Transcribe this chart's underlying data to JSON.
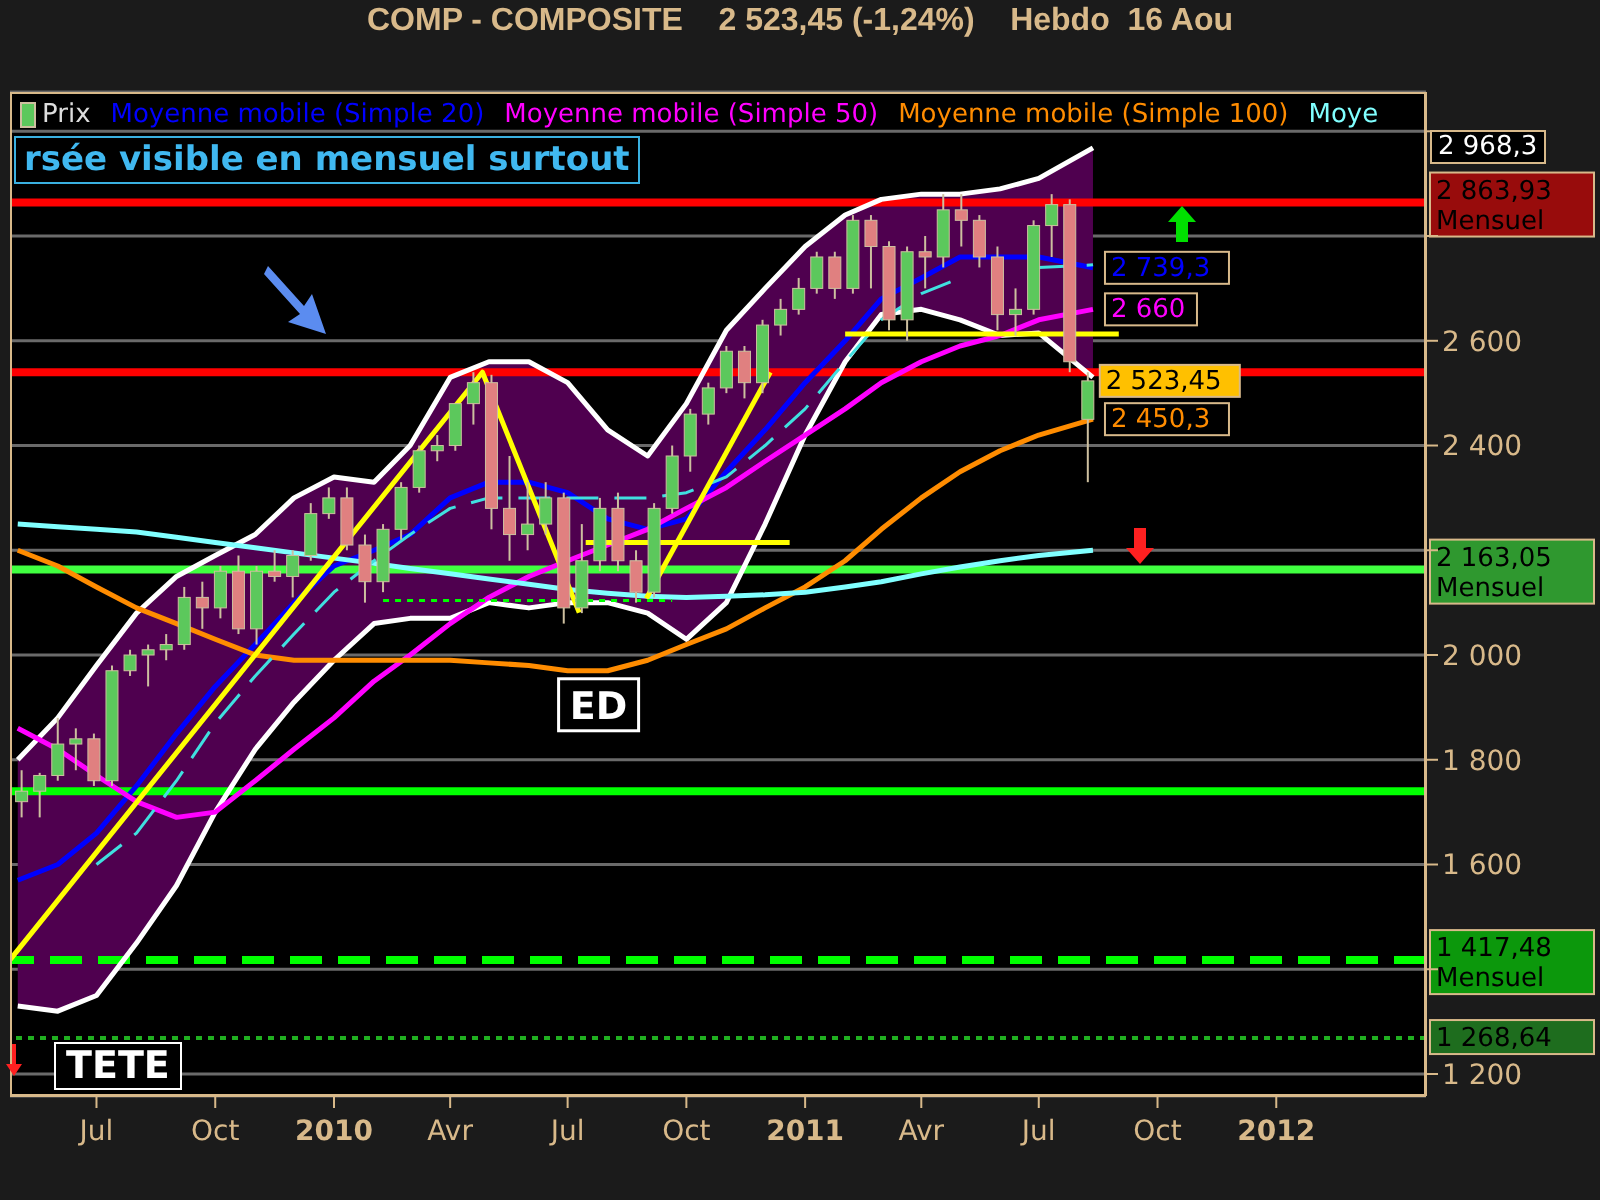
{
  "chart_data": {
    "type": "candlestick",
    "title": "COMP - COMPOSITE    2 523,45 (-1,24%)    Hebdo  16 Aou",
    "x": [
      "2009-05-04",
      "2009-05-18",
      "2009-06-01",
      "2009-06-15",
      "2009-06-29",
      "2009-07-13",
      "2009-07-27",
      "2009-08-10",
      "2009-08-24",
      "2009-09-07",
      "2009-09-21",
      "2009-10-05",
      "2009-10-19",
      "2009-11-02",
      "2009-11-16",
      "2009-11-30",
      "2009-12-14",
      "2009-12-28",
      "2010-01-11",
      "2010-01-25",
      "2010-02-08",
      "2010-02-22",
      "2010-03-08",
      "2010-03-22",
      "2010-04-05",
      "2010-04-19",
      "2010-05-03",
      "2010-05-17",
      "2010-05-31",
      "2010-06-14",
      "2010-06-28",
      "2010-07-12",
      "2010-07-26",
      "2010-08-09",
      "2010-08-23",
      "2010-09-06",
      "2010-09-20",
      "2010-10-04",
      "2010-10-18",
      "2010-11-01",
      "2010-11-15",
      "2010-11-29",
      "2010-12-13",
      "2010-12-27",
      "2011-01-10",
      "2011-01-24",
      "2011-02-07",
      "2011-02-21",
      "2011-03-07",
      "2011-03-21",
      "2011-04-04",
      "2011-04-18",
      "2011-05-02",
      "2011-05-16",
      "2011-05-30",
      "2011-06-13",
      "2011-06-27",
      "2011-07-11",
      "2011-07-25",
      "2011-08-08"
    ],
    "series": [
      {
        "name": "Prix",
        "ohlc": [
          [
            1720,
            1780,
            1690,
            1740
          ],
          [
            1740,
            1775,
            1690,
            1770
          ],
          [
            1770,
            1880,
            1760,
            1830
          ],
          [
            1830,
            1860,
            1780,
            1840
          ],
          [
            1840,
            1850,
            1750,
            1760
          ],
          [
            1760,
            1980,
            1750,
            1970
          ],
          [
            1970,
            2010,
            1960,
            2000
          ],
          [
            2000,
            2020,
            1940,
            2010
          ],
          [
            2010,
            2040,
            1990,
            2020
          ],
          [
            2020,
            2130,
            2010,
            2110
          ],
          [
            2110,
            2140,
            2050,
            2090
          ],
          [
            2090,
            2170,
            2070,
            2160
          ],
          [
            2160,
            2190,
            2040,
            2050
          ],
          [
            2050,
            2170,
            2020,
            2160
          ],
          [
            2160,
            2200,
            2140,
            2150
          ],
          [
            2150,
            2200,
            2110,
            2190
          ],
          [
            2190,
            2290,
            2180,
            2270
          ],
          [
            2270,
            2320,
            2260,
            2300
          ],
          [
            2300,
            2320,
            2200,
            2210
          ],
          [
            2210,
            2230,
            2100,
            2140
          ],
          [
            2140,
            2250,
            2120,
            2240
          ],
          [
            2240,
            2330,
            2220,
            2320
          ],
          [
            2320,
            2400,
            2310,
            2390
          ],
          [
            2390,
            2420,
            2370,
            2400
          ],
          [
            2400,
            2480,
            2390,
            2480
          ],
          [
            2480,
            2540,
            2440,
            2520
          ],
          [
            2520,
            2535,
            2240,
            2280
          ],
          [
            2280,
            2380,
            2180,
            2230
          ],
          [
            2230,
            2330,
            2200,
            2250
          ],
          [
            2250,
            2330,
            2230,
            2300
          ],
          [
            2300,
            2310,
            2060,
            2090
          ],
          [
            2090,
            2250,
            2080,
            2180
          ],
          [
            2180,
            2300,
            2160,
            2280
          ],
          [
            2280,
            2310,
            2160,
            2180
          ],
          [
            2180,
            2200,
            2100,
            2120
          ],
          [
            2120,
            2290,
            2110,
            2280
          ],
          [
            2280,
            2400,
            2270,
            2380
          ],
          [
            2380,
            2470,
            2350,
            2460
          ],
          [
            2460,
            2520,
            2440,
            2510
          ],
          [
            2510,
            2590,
            2500,
            2580
          ],
          [
            2580,
            2590,
            2490,
            2520
          ],
          [
            2520,
            2640,
            2500,
            2630
          ],
          [
            2630,
            2680,
            2610,
            2660
          ],
          [
            2660,
            2720,
            2650,
            2700
          ],
          [
            2700,
            2770,
            2690,
            2760
          ],
          [
            2760,
            2770,
            2680,
            2700
          ],
          [
            2700,
            2840,
            2690,
            2830
          ],
          [
            2830,
            2840,
            2700,
            2780
          ],
          [
            2780,
            2790,
            2620,
            2640
          ],
          [
            2640,
            2780,
            2600,
            2770
          ],
          [
            2770,
            2800,
            2700,
            2760
          ],
          [
            2760,
            2880,
            2740,
            2850
          ],
          [
            2850,
            2880,
            2780,
            2830
          ],
          [
            2830,
            2840,
            2740,
            2760
          ],
          [
            2760,
            2780,
            2620,
            2650
          ],
          [
            2650,
            2700,
            2610,
            2660
          ],
          [
            2660,
            2830,
            2650,
            2820
          ],
          [
            2820,
            2880,
            2760,
            2860
          ],
          [
            2860,
            2870,
            2540,
            2560
          ],
          [
            2450,
            2540,
            2330,
            2523.45
          ]
        ],
        "colors": [
          "#5cc85c",
          "#5cc85c",
          "#5cc85c",
          "#5cc85c",
          "#e08080",
          "#5cc85c",
          "#5cc85c",
          "#5cc85c",
          "#5cc85c",
          "#5cc85c",
          "#e08080",
          "#5cc85c",
          "#e08080",
          "#5cc85c",
          "#e08080",
          "#5cc85c",
          "#5cc85c",
          "#5cc85c",
          "#e08080",
          "#e08080",
          "#5cc85c",
          "#5cc85c",
          "#5cc85c",
          "#5cc85c",
          "#5cc85c",
          "#5cc85c",
          "#e08080",
          "#e08080",
          "#5cc85c",
          "#5cc85c",
          "#e08080",
          "#5cc85c",
          "#5cc85c",
          "#e08080",
          "#e08080",
          "#5cc85c",
          "#5cc85c",
          "#5cc85c",
          "#5cc85c",
          "#5cc85c",
          "#e08080",
          "#5cc85c",
          "#5cc85c",
          "#5cc85c",
          "#5cc85c",
          "#e08080",
          "#5cc85c",
          "#e08080",
          "#e08080",
          "#5cc85c",
          "#e08080",
          "#5cc85c",
          "#e08080",
          "#e08080",
          "#e08080",
          "#5cc85c",
          "#5cc85c",
          "#5cc85c",
          "#e08080",
          "#5cc85c"
        ],
        "value_labels": [
          null,
          null,
          null,
          null,
          null,
          null,
          null,
          null,
          null,
          null,
          null,
          null,
          null,
          null,
          null,
          null,
          null,
          null,
          null,
          null,
          null,
          null,
          null,
          null,
          null,
          null,
          null,
          null,
          null,
          null,
          null,
          null,
          null,
          null,
          null,
          null,
          null,
          null,
          null,
          null,
          null,
          null,
          null,
          null,
          null,
          null,
          null,
          null,
          null,
          null,
          null,
          null,
          null,
          null,
          null,
          null,
          null,
          null,
          null,
          "2 523,45"
        ]
      },
      {
        "type": "line",
        "color": "#ffffff",
        "x": [
          "2009-05-01",
          "2009-06-01",
          "2009-07-01",
          "2009-08-01",
          "2009-09-01",
          "2009-10-01",
          "2009-11-01",
          "2009-12-01",
          "2010-01-01",
          "2010-02-01",
          "2010-03-01",
          "2010-04-01",
          "2010-05-01",
          "2010-06-01",
          "2010-07-01",
          "2010-08-01",
          "2010-09-01",
          "2010-10-01",
          "2010-11-01",
          "2010-12-01",
          "2011-01-01",
          "2011-02-01",
          "2011-03-01",
          "2011-04-01",
          "2011-05-01",
          "2011-06-01",
          "2011-07-01",
          "2011-08-12"
        ],
        "values": [
          1800,
          1880,
          1980,
          2080,
          2150,
          2190,
          2230,
          2300,
          2340,
          2330,
          2400,
          2530,
          2560,
          2560,
          2520,
          2430,
          2380,
          2480,
          2620,
          2700,
          2780,
          2840,
          2870,
          2880,
          2880,
          2890,
          2910,
          2968.3
        ]
      },
      {
        "type": "line",
        "color": "#ffffff",
        "x": [
          "2009-05-01",
          "2009-06-01",
          "2009-07-01",
          "2009-08-01",
          "2009-09-01",
          "2009-10-01",
          "2009-11-01",
          "2009-12-01",
          "2010-01-01",
          "2010-02-01",
          "2010-03-01",
          "2010-04-01",
          "2010-05-01",
          "2010-06-01",
          "2010-07-01",
          "2010-08-01",
          "2010-09-01",
          "2010-10-01",
          "2010-11-01",
          "2010-12-01",
          "2011-01-01",
          "2011-02-01",
          "2011-03-01",
          "2011-04-01",
          "2011-05-01",
          "2011-06-01",
          "2011-07-01",
          "2011-08-12"
        ],
        "values": [
          1330,
          1320,
          1350,
          1450,
          1560,
          1700,
          1820,
          1910,
          1990,
          2060,
          2070,
          2070,
          2100,
          2090,
          2100,
          2100,
          2080,
          2030,
          2100,
          2250,
          2420,
          2560,
          2650,
          2660,
          2640,
          2610,
          2615,
          2530
        ]
      },
      {
        "type": "line",
        "name": "Moyenne mobile (Simple 20)",
        "color": "#0000ff",
        "x": [
          "2009-05-01",
          "2009-06-01",
          "2009-07-01",
          "2009-08-01",
          "2009-09-01",
          "2009-10-01",
          "2009-11-01",
          "2009-12-01",
          "2010-01-01",
          "2010-02-01",
          "2010-03-01",
          "2010-04-01",
          "2010-05-01",
          "2010-06-01",
          "2010-07-01",
          "2010-08-01",
          "2010-09-01",
          "2010-10-01",
          "2010-11-01",
          "2010-12-01",
          "2011-01-01",
          "2011-02-01",
          "2011-03-01",
          "2011-04-01",
          "2011-05-01",
          "2011-06-01",
          "2011-07-01",
          "2011-08-12"
        ],
        "values": [
          1570,
          1600,
          1660,
          1750,
          1850,
          1940,
          2020,
          2100,
          2170,
          2200,
          2230,
          2300,
          2330,
          2330,
          2310,
          2260,
          2240,
          2260,
          2350,
          2430,
          2520,
          2600,
          2680,
          2720,
          2760,
          2760,
          2760,
          2739.3
        ],
        "lower": [
          1330,
          1320,
          1350,
          1450,
          1560,
          1700,
          1820,
          1910,
          1990,
          2060,
          2070,
          2070,
          2100,
          2090,
          2100,
          2100,
          2080,
          2030,
          2100,
          2250,
          2420,
          2560,
          2650,
          2660,
          2640,
          2610,
          2615,
          2530
        ],
        "upper": [
          1800,
          1880,
          1980,
          2080,
          2150,
          2190,
          2230,
          2300,
          2340,
          2330,
          2400,
          2530,
          2560,
          2560,
          2520,
          2430,
          2380,
          2480,
          2620,
          2700,
          2780,
          2840,
          2870,
          2880,
          2880,
          2890,
          2910,
          2968.3
        ],
        "value_labels": [
          null,
          null,
          null,
          null,
          null,
          null,
          null,
          null,
          null,
          null,
          null,
          null,
          null,
          null,
          null,
          null,
          null,
          null,
          null,
          null,
          null,
          null,
          null,
          null,
          null,
          null,
          null,
          "2 739,3"
        ]
      },
      {
        "type": "line",
        "name": "Moyenne mobile (Simple 50)",
        "color": "#ff00ff",
        "x": [
          "2009-05-01",
          "2009-06-01",
          "2009-07-01",
          "2009-08-01",
          "2009-09-01",
          "2009-10-01",
          "2009-11-01",
          "2009-12-01",
          "2010-01-01",
          "2010-02-01",
          "2010-03-01",
          "2010-04-01",
          "2010-05-01",
          "2010-06-01",
          "2010-07-01",
          "2010-08-01",
          "2010-09-01",
          "2010-10-01",
          "2010-11-01",
          "2010-12-01",
          "2011-01-01",
          "2011-02-01",
          "2011-03-01",
          "2011-04-01",
          "2011-05-01",
          "2011-06-01",
          "2011-07-01",
          "2011-08-12"
        ],
        "values": [
          1860,
          1820,
          1770,
          1720,
          1690,
          1700,
          1760,
          1820,
          1880,
          1950,
          2000,
          2060,
          2110,
          2150,
          2180,
          2210,
          2240,
          2280,
          2320,
          2370,
          2420,
          2470,
          2520,
          2560,
          2590,
          2610,
          2640,
          2660
        ],
        "value_labels": [
          null,
          null,
          null,
          null,
          null,
          null,
          null,
          null,
          null,
          null,
          null,
          null,
          null,
          null,
          null,
          null,
          null,
          null,
          null,
          null,
          null,
          null,
          null,
          null,
          null,
          null,
          null,
          "2 660"
        ]
      },
      {
        "type": "line",
        "name": "Moyenne mobile (Simple 100)",
        "color": "#ff8c00",
        "x": [
          "2009-05-01",
          "2009-06-01",
          "2009-07-01",
          "2009-08-01",
          "2009-09-01",
          "2009-10-01",
          "2009-11-01",
          "2009-12-01",
          "2010-01-01",
          "2010-02-01",
          "2010-03-01",
          "2010-04-01",
          "2010-05-01",
          "2010-06-01",
          "2010-07-01",
          "2010-08-01",
          "2010-09-01",
          "2010-10-01",
          "2010-11-01",
          "2010-12-01",
          "2011-01-01",
          "2011-02-01",
          "2011-03-01",
          "2011-04-01",
          "2011-05-01",
          "2011-06-01",
          "2011-07-01",
          "2011-08-12"
        ],
        "values": [
          2200,
          2170,
          2130,
          2090,
          2060,
          2030,
          2000,
          1990,
          1990,
          1990,
          1990,
          1990,
          1985,
          1980,
          1970,
          1970,
          1990,
          2020,
          2050,
          2090,
          2130,
          2180,
          2240,
          2300,
          2350,
          2390,
          2420,
          2450.3
        ],
        "value_labels": [
          null,
          null,
          null,
          null,
          null,
          null,
          null,
          null,
          null,
          null,
          null,
          null,
          null,
          null,
          null,
          null,
          null,
          null,
          null,
          null,
          null,
          null,
          null,
          null,
          null,
          null,
          null,
          "2 450,3"
        ]
      },
      {
        "type": "line",
        "name": "Moye",
        "color": "#80ffff",
        "x": [
          "2009-05-01",
          "2009-06-01",
          "2009-07-01",
          "2009-08-01",
          "2009-09-01",
          "2009-10-01",
          "2009-11-01",
          "2009-12-01",
          "2010-01-01",
          "2010-02-01",
          "2010-03-01",
          "2010-04-01",
          "2010-05-01",
          "2010-06-01",
          "2010-07-01",
          "2010-08-01",
          "2010-09-01",
          "2010-10-01",
          "2010-11-01",
          "2010-12-01",
          "2011-01-01",
          "2011-02-01",
          "2011-03-01",
          "2011-04-01",
          "2011-05-01",
          "2011-06-01",
          "2011-07-01",
          "2011-08-12"
        ],
        "values": [
          2250,
          2245,
          2240,
          2235,
          2225,
          2215,
          2205,
          2195,
          2185,
          2175,
          2165,
          2155,
          2145,
          2135,
          2125,
          2118,
          2112,
          2110,
          2112,
          2115,
          2120,
          2130,
          2140,
          2155,
          2168,
          2180,
          2190,
          2200
        ]
      },
      {
        "type": "line",
        "color": "#40e0e0",
        "line_style": "dashed",
        "x": [
          "2009-07-01",
          "2009-08-01",
          "2009-09-01",
          "2009-10-01",
          "2009-11-01",
          "2009-12-01",
          "2010-01-01",
          "2010-02-01",
          "2010-03-01",
          "2010-04-01",
          "2010-05-01",
          "2010-06-01",
          "2010-07-01",
          "2010-08-01",
          "2010-09-01",
          "2010-10-01",
          "2010-11-01",
          "2010-12-01",
          "2011-01-01",
          "2011-02-01",
          "2011-03-01",
          "2011-04-01",
          "2011-05-01",
          "2011-06-01",
          "2011-07-01",
          "2011-08-12"
        ],
        "values": [
          1600,
          1660,
          1760,
          1870,
          1960,
          2040,
          2120,
          2180,
          2230,
          2280,
          2300,
          2300,
          2300,
          2300,
          2300,
          2310,
          2340,
          2400,
          2470,
          2560,
          2640,
          2690,
          2720,
          null,
          2740,
          2745
        ]
      },
      {
        "type": "line",
        "color": "#ffff00",
        "x": [
          "2009-04-25",
          "2010-04-26",
          "2010-07-10"
        ],
        "values": [
          1418,
          2540,
          2081
        ]
      },
      {
        "type": "line",
        "color": "#ffff00",
        "x": [
          "2010-08-31",
          "2010-12-05"
        ],
        "values": [
          2108,
          2540
        ]
      },
      {
        "type": "line",
        "color": "#ffff00",
        "x": [
          "2010-07-15",
          "2010-12-20"
        ],
        "values": [
          2215,
          2215
        ]
      },
      {
        "type": "line",
        "color": "#ffff00",
        "x": [
          "2011-02-01",
          "2011-09-01"
        ],
        "values": [
          2613,
          2613
        ]
      },
      {
        "type": "line",
        "color": "#00ff00",
        "line_style": "dotted",
        "x": [
          "2010-02-08",
          "2010-09-20"
        ],
        "values": [
          2104,
          2104
        ]
      }
    ],
    "ref_lines": [
      {
        "axis": "y",
        "value": 2863.93,
        "label": "2 863,93\nMensuel",
        "color": "#ff0000"
      },
      {
        "axis": "y",
        "value": 2540,
        "label": null,
        "color": "#ff0000"
      },
      {
        "axis": "y",
        "value": 2163.05,
        "label": "2 163,05\nMensuel",
        "color": "#40ff40"
      },
      {
        "axis": "y",
        "value": 1740,
        "label": null,
        "color": "#00ff00"
      },
      {
        "axis": "y",
        "value": 1417.48,
        "label": "1 417,48\nMensuel",
        "color": "#00ff00",
        "line_style": "dashed"
      },
      {
        "axis": "y",
        "value": 1268.64,
        "label": "1 268,64",
        "color": "#20b020",
        "line_style": "dotted"
      }
    ],
    "annotations": [
      "rsée visible en mensuel surtout",
      {
        "text": "ED",
        "x": "2010-07-25",
        "y": 1905
      },
      "TETE",
      "2 968,3"
    ],
    "xlim": [
      "2009-04-25",
      "2012-04-26"
    ],
    "xticks": [
      {
        "value": "2009-07-01",
        "label": "Jul"
      },
      {
        "value": "2009-10-01",
        "label": "Oct"
      },
      {
        "value": "2010-01-01",
        "label": "2010"
      },
      {
        "value": "2010-04-01",
        "label": "Avr"
      },
      {
        "value": "2010-07-01",
        "label": "Jul"
      },
      {
        "value": "2010-10-01",
        "label": "Oct"
      },
      {
        "value": "2011-01-01",
        "label": "2011"
      },
      {
        "value": "2011-04-01",
        "label": "Avr"
      },
      {
        "value": "2011-07-01",
        "label": "Jul"
      },
      {
        "value": "2011-10-01",
        "label": "Oct"
      },
      {
        "value": "2012-01-01",
        "label": "2012"
      }
    ],
    "ylim": [
      1158,
      3075
    ],
    "yticks": [
      {
        "value": 1200,
        "label": "1 200"
      },
      {
        "value": 1400,
        "label": null
      },
      {
        "value": 1600,
        "label": "1 600"
      },
      {
        "value": 1800,
        "label": "1 800"
      },
      {
        "value": 2000,
        "label": "2 000"
      },
      {
        "value": 2200,
        "label": null
      },
      {
        "value": 2400,
        "label": "2 400"
      },
      {
        "value": 2600,
        "label": "2 600"
      },
      {
        "value": 2800,
        "label": null
      },
      {
        "value": 3000,
        "label": null
      }
    ],
    "grid": "y",
    "legend": "top",
    "marker": "none"
  }
}
